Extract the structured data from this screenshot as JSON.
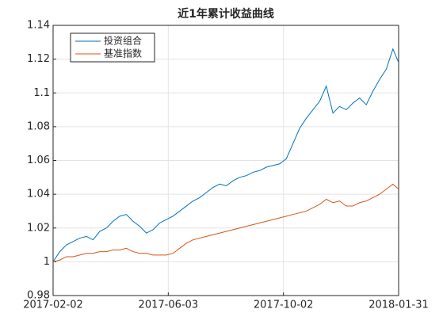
{
  "chart_data": {
    "type": "line",
    "title": "近1年累计收益曲线",
    "x": [
      "2017-02-02",
      "2017-02-09",
      "2017-02-16",
      "2017-02-23",
      "2017-03-02",
      "2017-03-09",
      "2017-03-16",
      "2017-03-23",
      "2017-03-30",
      "2017-04-06",
      "2017-04-13",
      "2017-04-20",
      "2017-04-27",
      "2017-05-04",
      "2017-05-11",
      "2017-05-18",
      "2017-05-25",
      "2017-06-01",
      "2017-06-08",
      "2017-06-15",
      "2017-06-22",
      "2017-06-29",
      "2017-07-06",
      "2017-07-13",
      "2017-07-20",
      "2017-07-27",
      "2017-08-03",
      "2017-08-10",
      "2017-08-17",
      "2017-08-24",
      "2017-08-31",
      "2017-09-07",
      "2017-09-14",
      "2017-09-21",
      "2017-09-28",
      "2017-10-05",
      "2017-10-12",
      "2017-10-19",
      "2017-10-26",
      "2017-11-02",
      "2017-11-09",
      "2017-11-16",
      "2017-11-23",
      "2017-11-30",
      "2017-12-07",
      "2017-12-14",
      "2017-12-21",
      "2017-12-28",
      "2018-01-04",
      "2018-01-11",
      "2018-01-18",
      "2018-01-25",
      "2018-01-31"
    ],
    "series": [
      {
        "name": "投资组合",
        "color": "#0072bd",
        "values": [
          1.0,
          1.006,
          1.01,
          1.012,
          1.014,
          1.015,
          1.013,
          1.018,
          1.02,
          1.024,
          1.027,
          1.028,
          1.024,
          1.021,
          1.017,
          1.019,
          1.023,
          1.025,
          1.027,
          1.03,
          1.033,
          1.036,
          1.038,
          1.041,
          1.044,
          1.046,
          1.045,
          1.048,
          1.05,
          1.051,
          1.053,
          1.054,
          1.056,
          1.057,
          1.058,
          1.061,
          1.07,
          1.079,
          1.085,
          1.09,
          1.095,
          1.104,
          1.088,
          1.092,
          1.09,
          1.094,
          1.097,
          1.093,
          1.101,
          1.108,
          1.114,
          1.126,
          1.118
        ]
      },
      {
        "name": "基准指数",
        "color": "#d95319",
        "values": [
          1.0,
          1.001,
          1.003,
          1.003,
          1.004,
          1.005,
          1.005,
          1.006,
          1.006,
          1.007,
          1.007,
          1.008,
          1.006,
          1.005,
          1.005,
          1.004,
          1.004,
          1.004,
          1.005,
          1.008,
          1.011,
          1.013,
          1.014,
          1.015,
          1.016,
          1.017,
          1.018,
          1.019,
          1.02,
          1.021,
          1.022,
          1.023,
          1.024,
          1.025,
          1.026,
          1.027,
          1.028,
          1.029,
          1.03,
          1.032,
          1.034,
          1.037,
          1.035,
          1.036,
          1.033,
          1.033,
          1.035,
          1.036,
          1.038,
          1.04,
          1.043,
          1.046,
          1.043
        ]
      }
    ],
    "xlim": [
      "2017-02-02",
      "2018-01-31"
    ],
    "xticks": [
      "2017-02-02",
      "2017-06-03",
      "2017-10-02",
      "2018-01-31"
    ],
    "ylim": [
      0.98,
      1.14
    ],
    "yticks": [
      0.98,
      1,
      1.02,
      1.04,
      1.06,
      1.08,
      1.1,
      1.12,
      1.14
    ],
    "grid": true,
    "legend": "upper left"
  }
}
